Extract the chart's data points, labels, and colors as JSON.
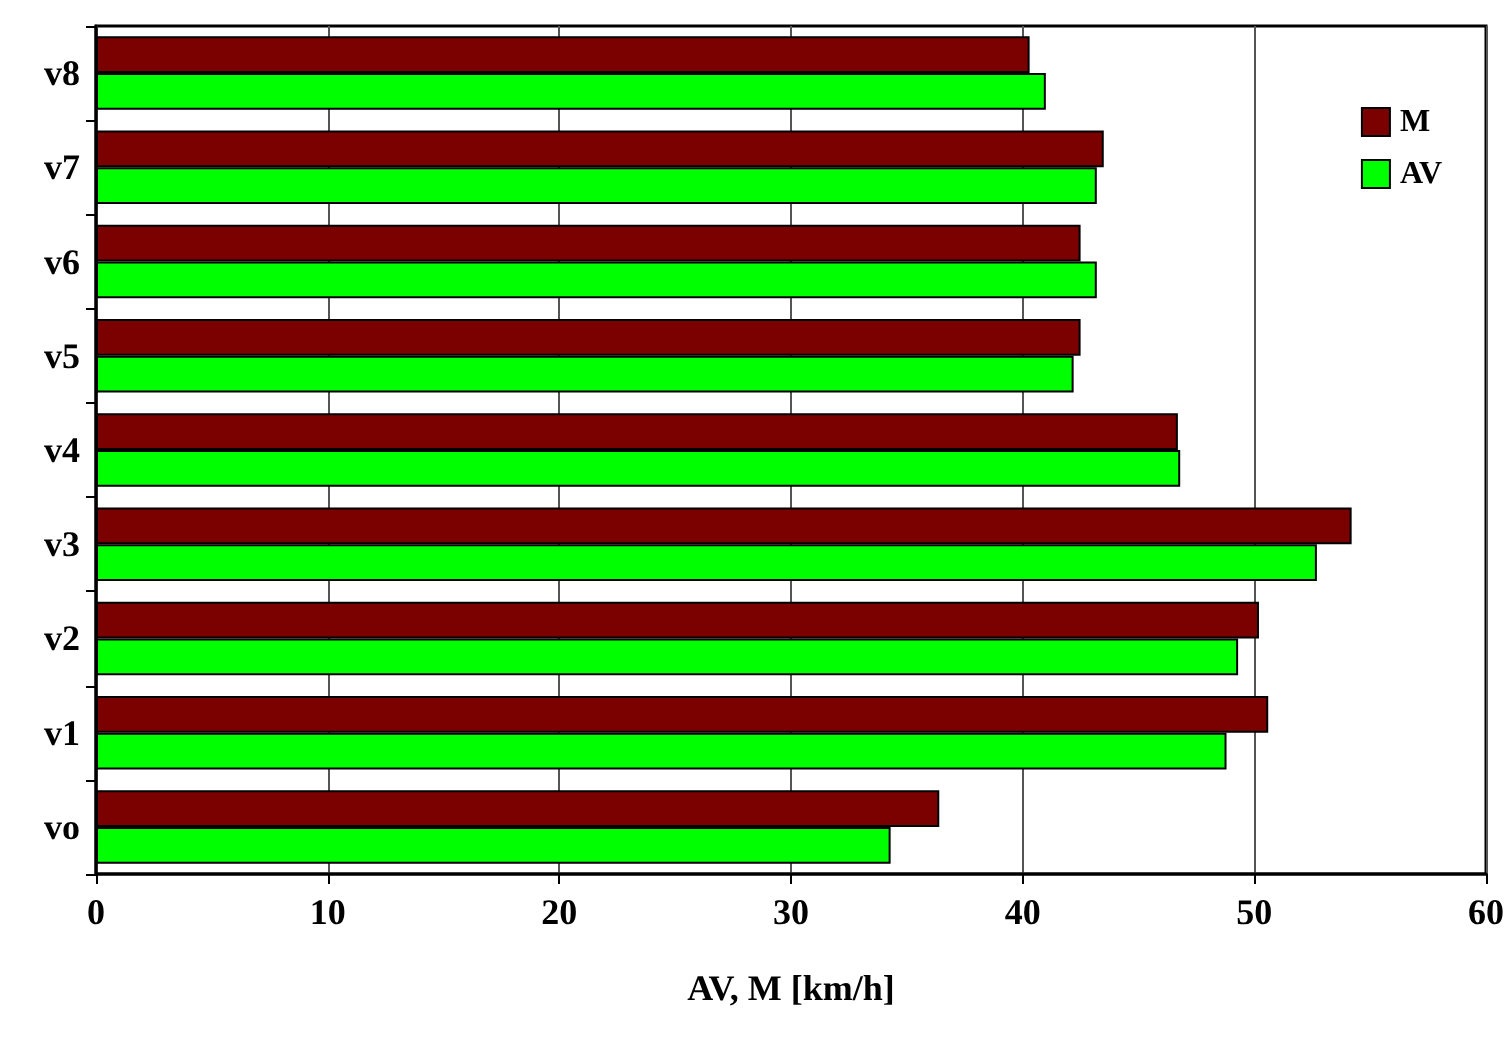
{
  "chart_data": {
    "type": "bar",
    "orientation": "horizontal",
    "xlabel": "AV, M [km/h]",
    "categories": [
      "v8",
      "v7",
      "v6",
      "v5",
      "v4",
      "v3",
      "v2",
      "v1",
      "vo"
    ],
    "series": [
      {
        "name": "M",
        "color": "#7b0000",
        "values": [
          40.3,
          43.5,
          42.5,
          42.5,
          46.7,
          54.2,
          50.2,
          50.6,
          36.4
        ]
      },
      {
        "name": "AV",
        "color": "#00ff00",
        "values": [
          41.0,
          43.2,
          43.2,
          42.2,
          46.8,
          52.7,
          49.3,
          48.8,
          34.3
        ]
      }
    ],
    "xlim": [
      0,
      60
    ],
    "xticks": [
      0,
      10,
      20,
      30,
      40,
      50,
      60
    ],
    "grid": "x",
    "legend": "top right"
  }
}
